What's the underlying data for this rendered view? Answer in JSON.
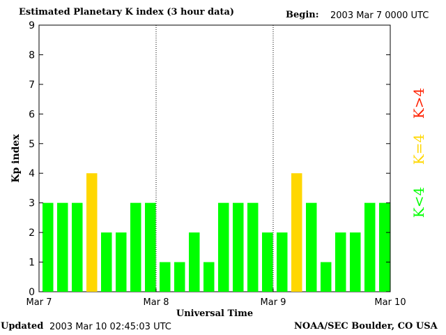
{
  "header": {
    "title": "Estimated Planetary K index (3 hour data)",
    "begin_label": "Begin:",
    "begin_value": "2003 Mar 7 0000 UTC"
  },
  "footer": {
    "updated_label": "Updated",
    "updated_value": "2003 Mar 10 02:45:03 UTC",
    "source": "NOAA/SEC Boulder, CO USA"
  },
  "legend": {
    "low": "K<4",
    "mid": "K=4",
    "high": "K>4"
  },
  "colors": {
    "low": "#00ff00",
    "mid": "#ffd700",
    "high": "#ff2000",
    "divider": "#000000"
  },
  "chart_data": {
    "type": "bar",
    "title": "Estimated Planetary K index (3 hour data)",
    "xlabel": "Universal Time",
    "ylabel": "Kp index",
    "ylim": [
      0,
      9
    ],
    "yticks": [
      0,
      1,
      2,
      3,
      4,
      5,
      6,
      7,
      8,
      9
    ],
    "x_ticks": [
      "Mar 7",
      "Mar 8",
      "Mar 9",
      "Mar 10"
    ],
    "day_dividers": [
      "Mar 8",
      "Mar 9"
    ],
    "bin_hours": 3,
    "values": [
      3,
      3,
      3,
      4,
      2,
      2,
      3,
      3,
      1,
      1,
      2,
      1,
      3,
      3,
      3,
      2,
      2,
      4,
      3,
      1,
      2,
      2,
      3,
      3
    ],
    "grid": false
  }
}
